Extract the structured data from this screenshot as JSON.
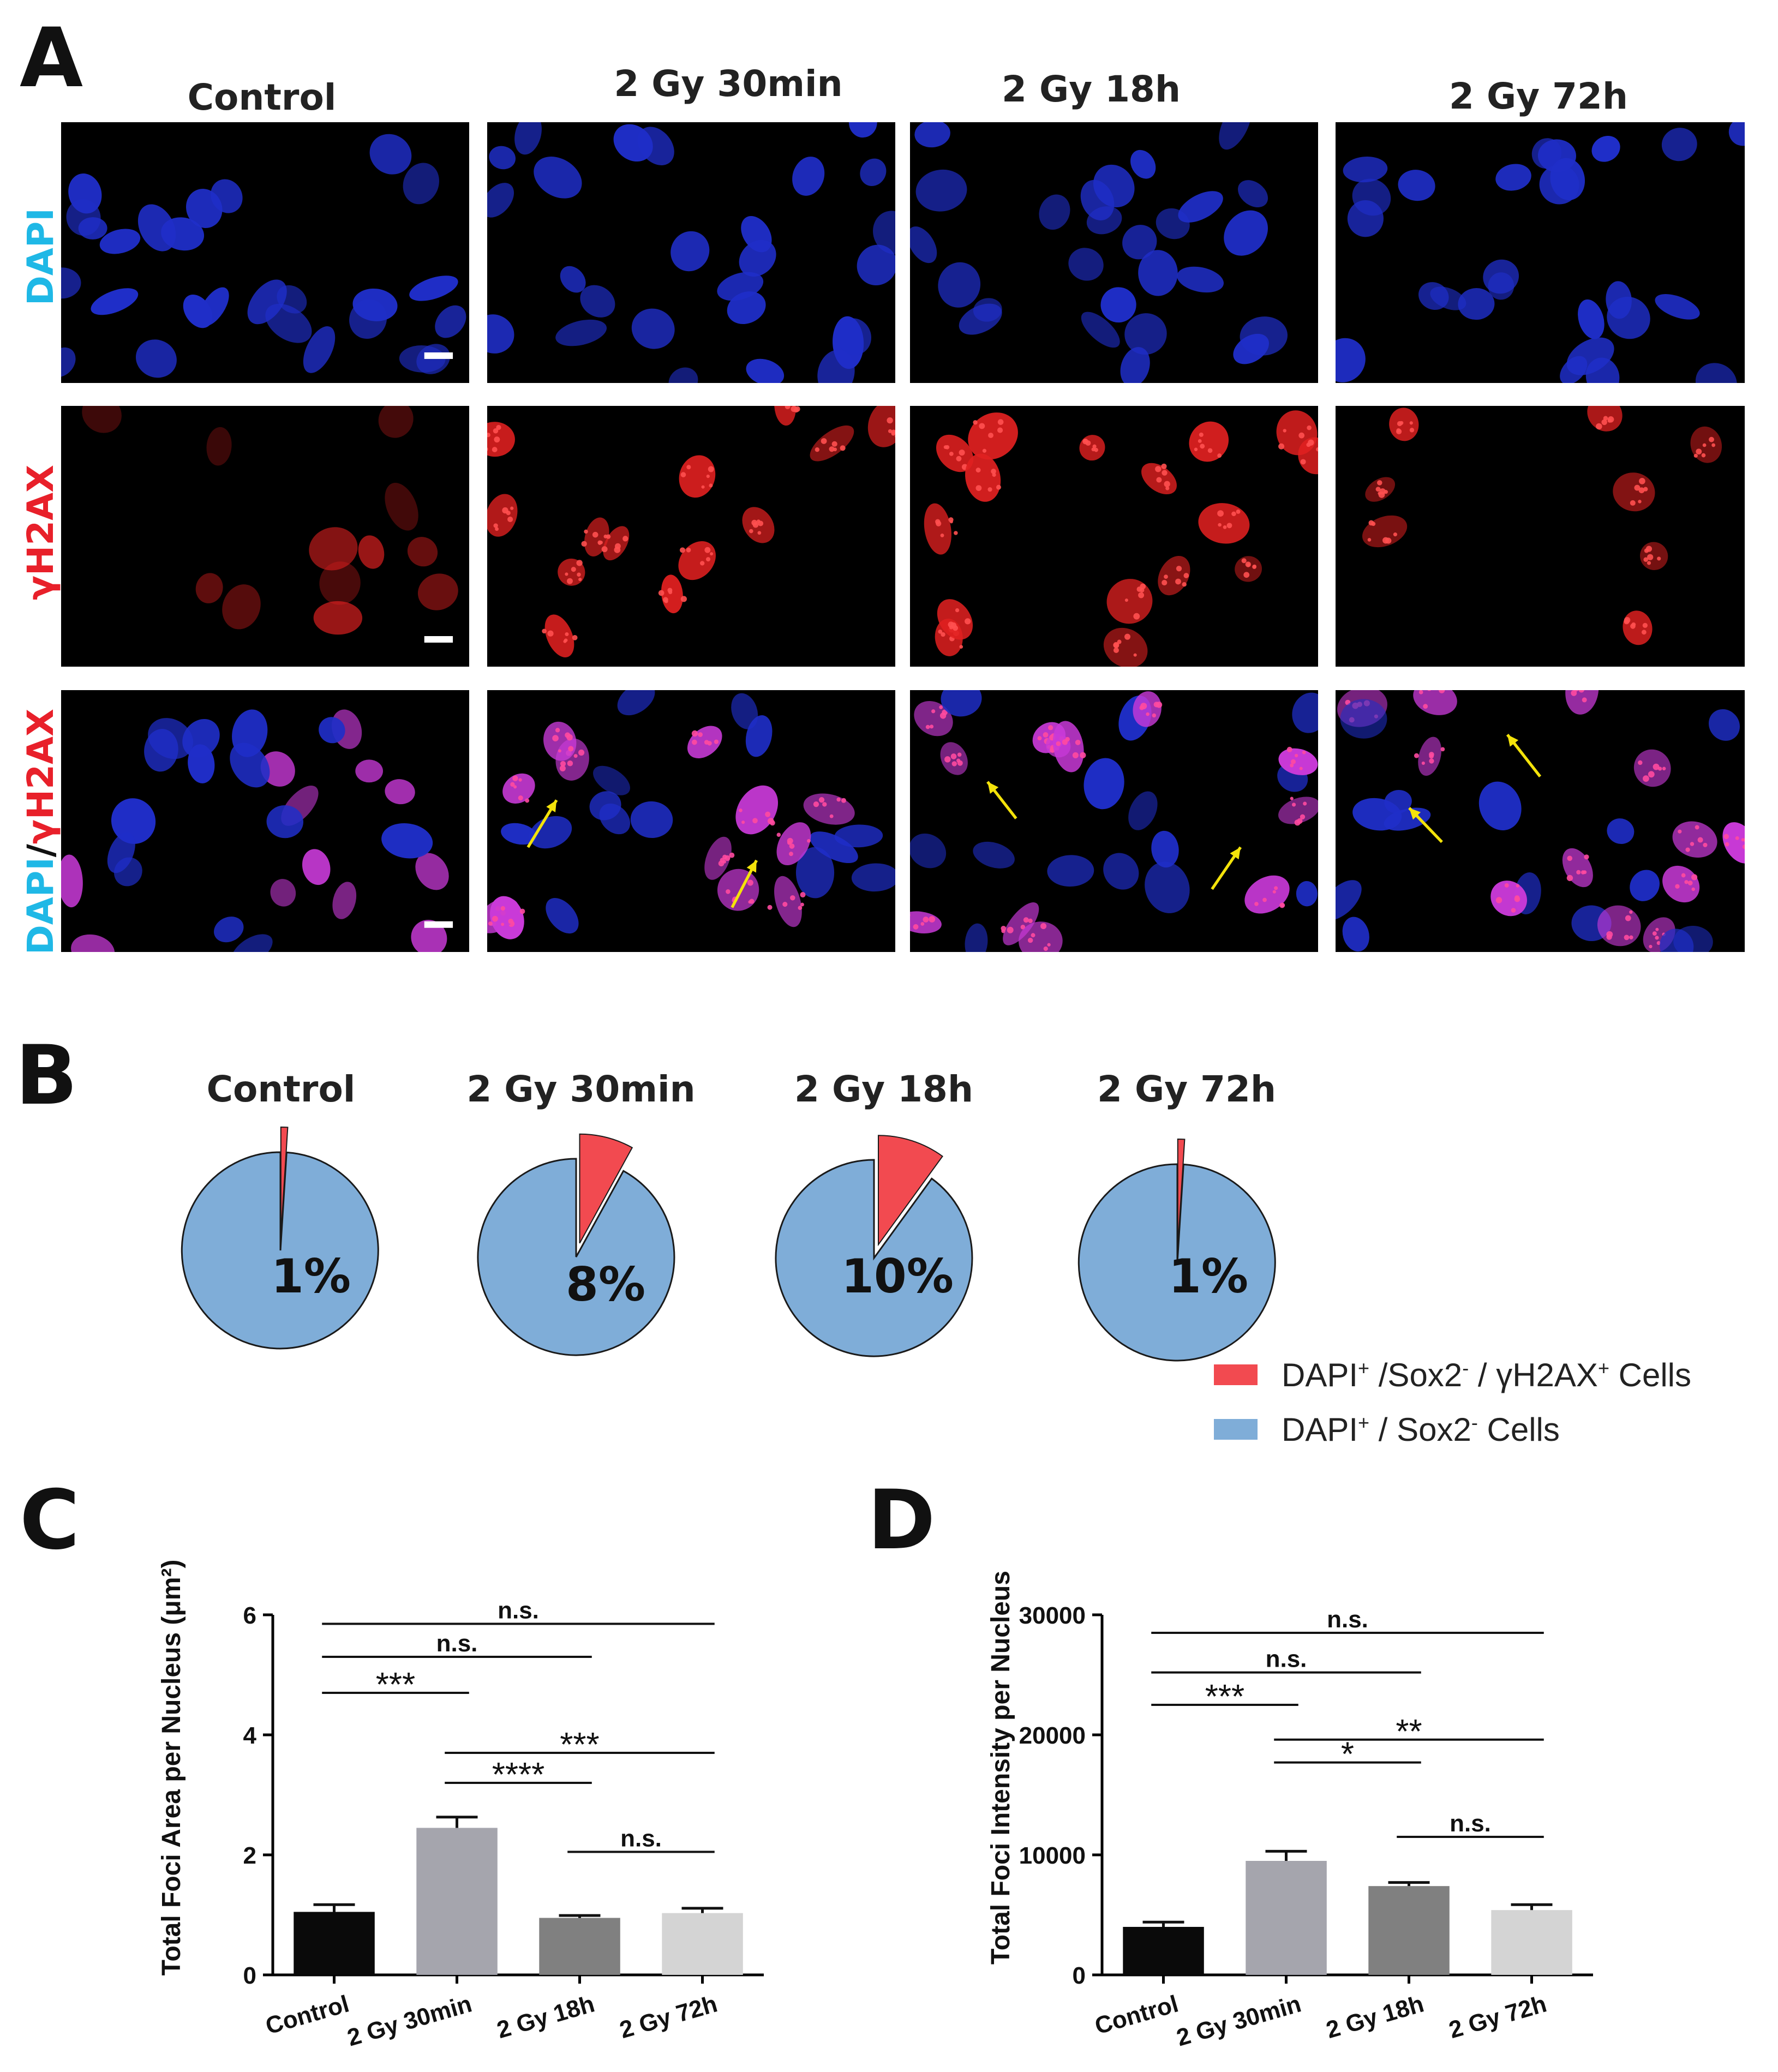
{
  "panel_letters": [
    "A",
    "B",
    "C",
    "D"
  ],
  "panel_a": {
    "columns": [
      "Control",
      "2 Gy 30min",
      "2 Gy 18h",
      "2 Gy 72h"
    ],
    "rows": [
      {
        "parts": [
          {
            "text": "DAPI",
            "color": "#1fb8e6"
          }
        ]
      },
      {
        "parts": [
          {
            "text": "γH2AX",
            "color": "#e8202a"
          }
        ]
      },
      {
        "parts": [
          {
            "text": "DAPI",
            "color": "#1fb8e6"
          },
          {
            "text": "/",
            "color": "#111111"
          },
          {
            "text": "γH2AX",
            "color": "#e8202a"
          }
        ]
      }
    ],
    "colors": {
      "dapi": "#1f2ec8",
      "h2ax": "#e02020",
      "merge": "#c93ad8",
      "arrow": "#f4e30a",
      "scale_bar": "#ffffff"
    }
  },
  "panel_b": {
    "groups": [
      "Control",
      "2 Gy 30min",
      "2 Gy 18h",
      "2 Gy 72h"
    ],
    "percent_labels": [
      "1%",
      "8%",
      "10%",
      "1%"
    ],
    "percent_values": [
      1,
      8,
      10,
      1
    ],
    "legend": [
      {
        "label_parts": [
          "DAPI",
          "+",
          " /Sox2",
          "-",
          " / γH2AX",
          "+",
          " Cells"
        ],
        "color": "#f24a50"
      },
      {
        "label_parts": [
          "DAPI",
          "+",
          " / Sox2",
          "-",
          " Cells"
        ],
        "color": "#7fadd8"
      }
    ]
  },
  "chart_data": [
    {
      "type": "bar",
      "panel": "C",
      "categories": [
        "Control",
        "2 Gy 30min",
        "2 Gy 18h",
        "2 Gy 72h"
      ],
      "values": [
        1.05,
        2.45,
        0.95,
        1.03
      ],
      "errors": [
        0.12,
        0.18,
        0.04,
        0.08
      ],
      "colors": [
        "#0a0a0a",
        "#a5a5ad",
        "#808080",
        "#d4d4d4"
      ],
      "ylabel": "Total Foci Area per Nucleus (μm²)",
      "ylim": [
        0,
        6
      ],
      "yticks": [
        "0",
        "2",
        "4",
        "6"
      ],
      "ytick_values": [
        0,
        2,
        4,
        6
      ],
      "annotations": [
        {
          "from": 0,
          "to": 3,
          "label": "n.s.",
          "y": 5.85
        },
        {
          "from": 0,
          "to": 2,
          "label": "n.s.",
          "y": 5.3
        },
        {
          "from": 0,
          "to": 1,
          "label": "***",
          "y": 4.7
        },
        {
          "from": 1,
          "to": 3,
          "label": "***",
          "y": 3.7
        },
        {
          "from": 1,
          "to": 2,
          "label": "****",
          "y": 3.2
        },
        {
          "from": 2,
          "to": 3,
          "label": "n.s.",
          "y": 2.05
        }
      ]
    },
    {
      "type": "bar",
      "panel": "D",
      "categories": [
        "Control",
        "2 Gy 30min",
        "2 Gy 18h",
        "2 Gy 72h"
      ],
      "values": [
        4000,
        9500,
        7400,
        5400
      ],
      "errors": [
        400,
        800,
        300,
        450
      ],
      "colors": [
        "#0a0a0a",
        "#a5a5ad",
        "#808080",
        "#d4d4d4"
      ],
      "ylabel": "Total Foci Intensity per Nucleus",
      "ylim": [
        0,
        30000
      ],
      "yticks": [
        "0",
        "10000",
        "20000",
        "30000"
      ],
      "ytick_values": [
        0,
        10000,
        20000,
        30000
      ],
      "annotations": [
        {
          "from": 0,
          "to": 3,
          "label": "n.s.",
          "y": 28500
        },
        {
          "from": 0,
          "to": 2,
          "label": "n.s.",
          "y": 25200
        },
        {
          "from": 0,
          "to": 1,
          "label": "***",
          "y": 22500
        },
        {
          "from": 1,
          "to": 3,
          "label": "**",
          "y": 19600
        },
        {
          "from": 1,
          "to": 2,
          "label": "*",
          "y": 17700
        },
        {
          "from": 2,
          "to": 3,
          "label": "n.s.",
          "y": 11500
        }
      ]
    }
  ]
}
